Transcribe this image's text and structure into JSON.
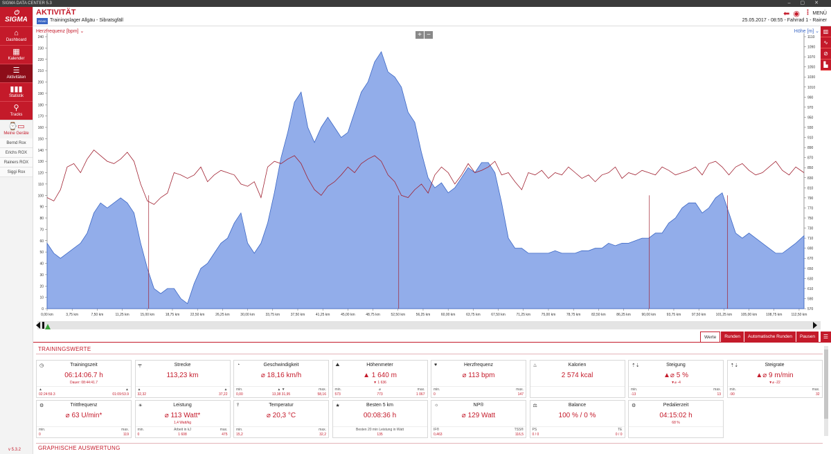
{
  "window": {
    "title": "SIGMA DATA CENTER 5.3"
  },
  "sidebar": {
    "logo": "SIGMA",
    "items": [
      {
        "label": "Dashboard",
        "icon": "home-icon"
      },
      {
        "label": "Kalender",
        "icon": "calendar-icon"
      },
      {
        "label": "Aktivitäten",
        "icon": "list-icon"
      },
      {
        "label": "Statistik",
        "icon": "bar-chart-icon"
      },
      {
        "label": "Tracks",
        "icon": "route-icon"
      }
    ],
    "devices_label": "Meine Geräte",
    "devices": [
      "Bernd Rox",
      "Erichs ROX",
      "Rainers ROX",
      "Siggi Rox"
    ],
    "version": "v 5.3.2"
  },
  "header": {
    "title": "AKTIVITÄT",
    "activity_icon_text": "ROAD",
    "activity_name": "Trainingslager Allgäu - Sibratsgfäll",
    "date": "25.05.2017",
    "time": "08:55",
    "bike": "Fahrrad 1",
    "user": "Rainer",
    "menu_label": "MENÜ"
  },
  "chart_data": {
    "type": "area",
    "left_axis": {
      "label": "Herzfrequenz [bpm]",
      "min": 0,
      "max": 240,
      "ticks": [
        0,
        10,
        20,
        30,
        40,
        50,
        60,
        70,
        80,
        90,
        100,
        110,
        120,
        130,
        140,
        150,
        160,
        170,
        180,
        190,
        200,
        210,
        220,
        230,
        240
      ]
    },
    "right_axis": {
      "label": "Höhe [m]",
      "min": 570,
      "max": 1110,
      "ticks": [
        570,
        590,
        610,
        630,
        650,
        670,
        690,
        710,
        730,
        750,
        770,
        790,
        810,
        830,
        850,
        870,
        890,
        910,
        930,
        950,
        970,
        990,
        1010,
        1030,
        1050,
        1070,
        1090,
        1110
      ]
    },
    "x_axis": {
      "unit": "km",
      "min": 0,
      "max": 113.23,
      "ticks": [
        "0,00 km",
        "3,75 km",
        "7,50 km",
        "11,25 km",
        "15,00 km",
        "18,75 km",
        "22,50 km",
        "26,25 km",
        "30,00 km",
        "33,75 km",
        "37,50 km",
        "41,25 km",
        "45,00 km",
        "48,75 km",
        "52,50 km",
        "56,25 km",
        "60,00 km",
        "63,75 km",
        "67,50 km",
        "71,25 km",
        "75,00 km",
        "78,75 km",
        "82,50 km",
        "86,25 km",
        "90,00 km",
        "93,75 km",
        "97,50 km",
        "101,25 km",
        "105,00 km",
        "108,75 km",
        "112,50 km"
      ]
    },
    "series": [
      {
        "name": "Höhe [m]",
        "axis": "right",
        "color": "#7f9fe6",
        "x": [
          0,
          1,
          2,
          3,
          4,
          5,
          6,
          7,
          8,
          9,
          10,
          11,
          12,
          13,
          14,
          15,
          16,
          17,
          18,
          19,
          20,
          21,
          22,
          23,
          24,
          25,
          26,
          27,
          28,
          29,
          30,
          31,
          32,
          33,
          34,
          35,
          36,
          37,
          38,
          39,
          40,
          41,
          42,
          43,
          44,
          45,
          46,
          47,
          48,
          49,
          50,
          51,
          52,
          53,
          54,
          55,
          56,
          57,
          58,
          59,
          60,
          61,
          62,
          63,
          64,
          65,
          66,
          67,
          68,
          69,
          70,
          71,
          72,
          73,
          74,
          75,
          76,
          77,
          78,
          79,
          80,
          81,
          82,
          83,
          84,
          85,
          86,
          87,
          88,
          89,
          90,
          91,
          92,
          93,
          94,
          95,
          96,
          97,
          98,
          99,
          100,
          101,
          102,
          103,
          104,
          105,
          106,
          107,
          108,
          109,
          110,
          111,
          112,
          113.23
        ],
        "y": [
          700,
          680,
          670,
          680,
          690,
          700,
          720,
          760,
          780,
          770,
          780,
          790,
          780,
          760,
          700,
          650,
          610,
          600,
          610,
          610,
          590,
          580,
          620,
          650,
          660,
          680,
          700,
          710,
          740,
          760,
          700,
          680,
          700,
          740,
          800,
          870,
          920,
          980,
          1000,
          930,
          900,
          930,
          950,
          930,
          910,
          920,
          960,
          1000,
          1020,
          1060,
          1080,
          1040,
          1030,
          1010,
          960,
          940,
          880,
          830,
          810,
          820,
          800,
          810,
          830,
          850,
          840,
          860,
          860,
          840,
          780,
          710,
          690,
          690,
          680,
          680,
          680,
          680,
          685,
          680,
          680,
          680,
          685,
          685,
          690,
          690,
          700,
          695,
          700,
          700,
          705,
          710,
          710,
          720,
          720,
          740,
          750,
          770,
          780,
          780,
          760,
          770,
          790,
          800,
          760,
          720,
          710,
          720,
          710,
          700,
          690,
          680,
          680,
          690,
          700,
          715
        ]
      },
      {
        "name": "Herzfrequenz [bpm]",
        "axis": "left",
        "color": "#a02030",
        "x": [
          0,
          1,
          2,
          3,
          4,
          5,
          6,
          7,
          8,
          9,
          10,
          11,
          12,
          13,
          14,
          15,
          16,
          17,
          18,
          19,
          20,
          21,
          22,
          23,
          24,
          25,
          26,
          27,
          28,
          29,
          30,
          31,
          32,
          33,
          34,
          35,
          36,
          37,
          38,
          39,
          40,
          41,
          42,
          43,
          44,
          45,
          46,
          47,
          48,
          49,
          50,
          51,
          52,
          53,
          54,
          55,
          56,
          57,
          58,
          59,
          60,
          61,
          62,
          63,
          64,
          65,
          66,
          67,
          68,
          69,
          70,
          71,
          72,
          73,
          74,
          75,
          76,
          77,
          78,
          79,
          80,
          81,
          82,
          83,
          84,
          85,
          86,
          87,
          88,
          89,
          90,
          91,
          92,
          93,
          94,
          95,
          96,
          97,
          98,
          99,
          100,
          101,
          102,
          103,
          104,
          105,
          106,
          107,
          108,
          109,
          110,
          111,
          112,
          113.23
        ],
        "y": [
          98,
          95,
          105,
          125,
          128,
          120,
          132,
          140,
          135,
          130,
          128,
          132,
          138,
          130,
          110,
          95,
          92,
          98,
          102,
          120,
          118,
          115,
          118,
          125,
          112,
          118,
          122,
          120,
          118,
          110,
          108,
          112,
          98,
          125,
          130,
          128,
          132,
          135,
          128,
          115,
          105,
          100,
          108,
          112,
          118,
          125,
          120,
          128,
          132,
          135,
          130,
          118,
          112,
          100,
          98,
          105,
          110,
          102,
          118,
          125,
          120,
          110,
          118,
          128,
          120,
          122,
          125,
          130,
          118,
          120,
          112,
          105,
          120,
          118,
          122,
          115,
          120,
          118,
          125,
          120,
          115,
          118,
          112,
          118,
          120,
          125,
          115,
          120,
          118,
          122,
          120,
          118,
          125,
          122,
          118,
          120,
          122,
          125,
          118,
          128,
          130,
          125,
          118,
          125,
          128,
          122,
          118,
          120,
          125,
          130,
          122,
          118,
          125,
          120
        ]
      }
    ],
    "lap_markers_km": [
      15.2,
      52.6,
      90.1,
      101.8
    ]
  },
  "tabs": [
    "Werte",
    "Runden",
    "Automatische Runden",
    "Pausen"
  ],
  "sections": {
    "values": "TRAININGSWERTE",
    "graphic": "GRAPHISCHE AUSWERTUNG"
  },
  "cards": [
    {
      "icon": "clock-icon",
      "title": "Trainingszeit",
      "value": "06:14:06.7 h",
      "sub": "Dauer:  08:44:41.7",
      "fl1": "▲",
      "fl2": "02:24:59.3",
      "fc1": "",
      "fc2": "",
      "fr1": "▲",
      "fr2": "01:09:53.9"
    },
    {
      "icon": "road-icon",
      "title": "Strecke",
      "value": "113,23 km",
      "sub": "",
      "fl1": "▲",
      "fl2": "32,32",
      "fc1": "",
      "fc2": "",
      "fr1": "▲",
      "fr2": "37,22"
    },
    {
      "icon": "speedometer-icon",
      "title": "Geschwindigkeit",
      "value": "⌀ 18,16 km/h",
      "sub": "",
      "fl1": "min.",
      "fl2": "0,00",
      "fc1": "▲   ▼",
      "fc2": "13,38   31,95",
      "fr1": "max.",
      "fr2": "58,16"
    },
    {
      "icon": "mountain-icon",
      "title": "Höhenmeter",
      "value": "▲ 1 640 m",
      "sub": "▼ 1 636",
      "fl1": "min.",
      "fl2": "573",
      "fc1": "⌀",
      "fc2": "773",
      "fr1": "max.",
      "fr2": "1 067"
    },
    {
      "icon": "heart-icon",
      "title": "Herzfrequenz",
      "value": "⌀ 113 bpm",
      "sub": "",
      "fl1": "min.",
      "fl2": "0",
      "fc1": "",
      "fc2": "",
      "fr1": "max.",
      "fr2": "147"
    },
    {
      "icon": "flame-icon",
      "title": "Kalorien",
      "value": "2 574 kcal",
      "sub": "",
      "fl1": "",
      "fl2": "",
      "fc1": "",
      "fc2": "",
      "fr1": "",
      "fr2": ""
    },
    {
      "icon": "slope-icon",
      "title": "Steigung",
      "value": "▲⌀ 5 %",
      "sub": "▼⌀ -4",
      "fl1": "min.",
      "fl2": "-13",
      "fc1": "",
      "fc2": "",
      "fr1": "max.",
      "fr2": "13"
    },
    {
      "icon": "climb-rate-icon",
      "title": "Steigrate",
      "value": "▲⌀ 9 m/min",
      "sub": "▼⌀ -22",
      "fl1": "min.",
      "fl2": "-90",
      "fc1": "",
      "fc2": "",
      "fr1": "max.",
      "fr2": "32"
    },
    {
      "icon": "cadence-icon",
      "title": "Trittfrequenz",
      "value": "⌀ 63 U/min*",
      "sub": "",
      "fl1": "min.",
      "fl2": "0",
      "fc1": "",
      "fc2": "",
      "fr1": "max.",
      "fr2": "119"
    },
    {
      "icon": "power-icon",
      "title": "Leistung",
      "value": "⌀ 113 Watt*",
      "sub": "1,4 Watt/kg",
      "fl1": "min.",
      "fl2": "0",
      "fc1": "Arbeit in kJ",
      "fc2": "1 608",
      "fr1": "max.",
      "fr2": "475"
    },
    {
      "icon": "thermometer-icon",
      "title": "Temperatur",
      "value": "⌀ 20,3 °C",
      "sub": "",
      "fl1": "min.",
      "fl2": "15,2",
      "fc1": "",
      "fc2": "",
      "fr1": "max.",
      "fr2": "32,2"
    },
    {
      "icon": "star-icon",
      "title": "Besten 5 km",
      "value": "00:08:36 h",
      "sub": "",
      "fl1": "",
      "fl2": "",
      "fc1": "Besten 20 min Leistung in Watt",
      "fc2": "135",
      "fr1": "",
      "fr2": ""
    },
    {
      "icon": "np-icon",
      "title": "NP®",
      "value": "⌀ 129 Watt",
      "sub": "",
      "fl1": "IF®",
      "fl2": "0,463",
      "fc1": "",
      "fc2": "",
      "fr1": "TSS®",
      "fr2": "116,5"
    },
    {
      "icon": "balance-icon",
      "title": "Balance",
      "value": "100 %  /  0 %",
      "sub": "",
      "fl1": "PS",
      "fl2": "0  /  0",
      "fc1": "",
      "fc2": "",
      "fr1": "TE",
      "fr2": "0  /  0"
    },
    {
      "icon": "pedal-icon",
      "title": "Pedalierzeit",
      "value": "04:15:02 h",
      "sub": "68 %",
      "fl1": "",
      "fl2": "",
      "fc1": "",
      "fc2": "",
      "fr1": "",
      "fr2": ""
    }
  ]
}
